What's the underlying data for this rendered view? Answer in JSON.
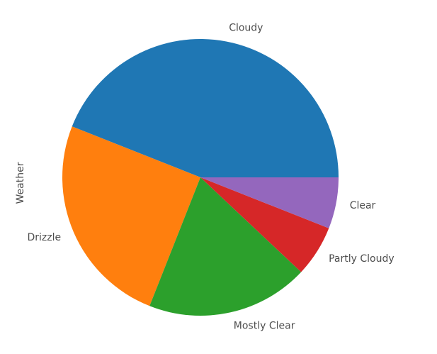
{
  "chart_data": {
    "type": "pie",
    "ylabel": "Weather",
    "labels": [
      "Cloudy",
      "Drizzle",
      "Mostly Clear",
      "Partly Cloudy",
      "Clear"
    ],
    "values": [
      44,
      25,
      19,
      6,
      6
    ],
    "colors": [
      "#1f77b4",
      "#ff7f0e",
      "#2ca02c",
      "#d62728",
      "#9467bd"
    ],
    "start_angle_deg": 0,
    "direction": "counterclockwise",
    "legend": "none"
  }
}
